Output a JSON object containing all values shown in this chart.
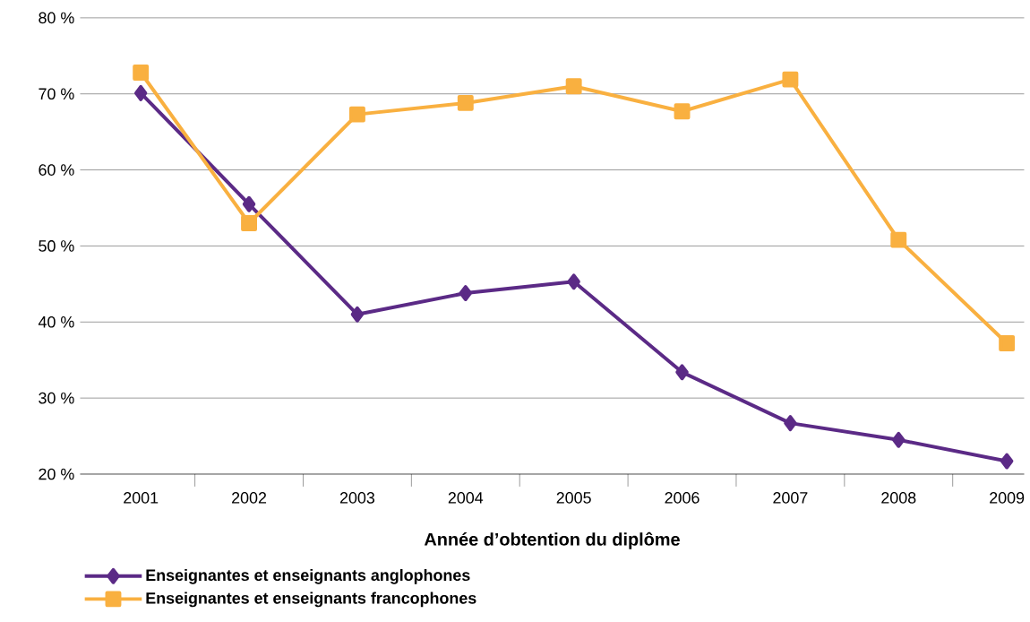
{
  "chart_data": {
    "type": "line",
    "xlabel": "Année d’obtention du diplôme",
    "categories": [
      "2001",
      "2002",
      "2003",
      "2004",
      "2005",
      "2006",
      "2007",
      "2008",
      "2009"
    ],
    "series": [
      {
        "name": "Enseignantes et enseignants anglophones",
        "color": "#5b2a86",
        "marker": "diamond",
        "values": [
          70.1,
          55.5,
          41.0,
          43.8,
          45.3,
          33.4,
          26.7,
          24.5,
          21.7
        ]
      },
      {
        "name": "Enseignantes et enseignants francophones",
        "color": "#f9b040",
        "marker": "square",
        "values": [
          72.8,
          53.0,
          67.3,
          68.8,
          71.0,
          67.7,
          71.9,
          50.8,
          37.2
        ]
      }
    ],
    "ylim": [
      20,
      80
    ],
    "yticks": [
      {
        "value": 20,
        "label": "20 %"
      },
      {
        "value": 30,
        "label": "30 %"
      },
      {
        "value": 40,
        "label": "40 %"
      },
      {
        "value": 50,
        "label": "50 %"
      },
      {
        "value": 60,
        "label": "60 %"
      },
      {
        "value": 70,
        "label": "70 %"
      },
      {
        "value": 80,
        "label": "80 %"
      }
    ],
    "grid": "y",
    "legend": "bottom",
    "line_style": "solid"
  }
}
